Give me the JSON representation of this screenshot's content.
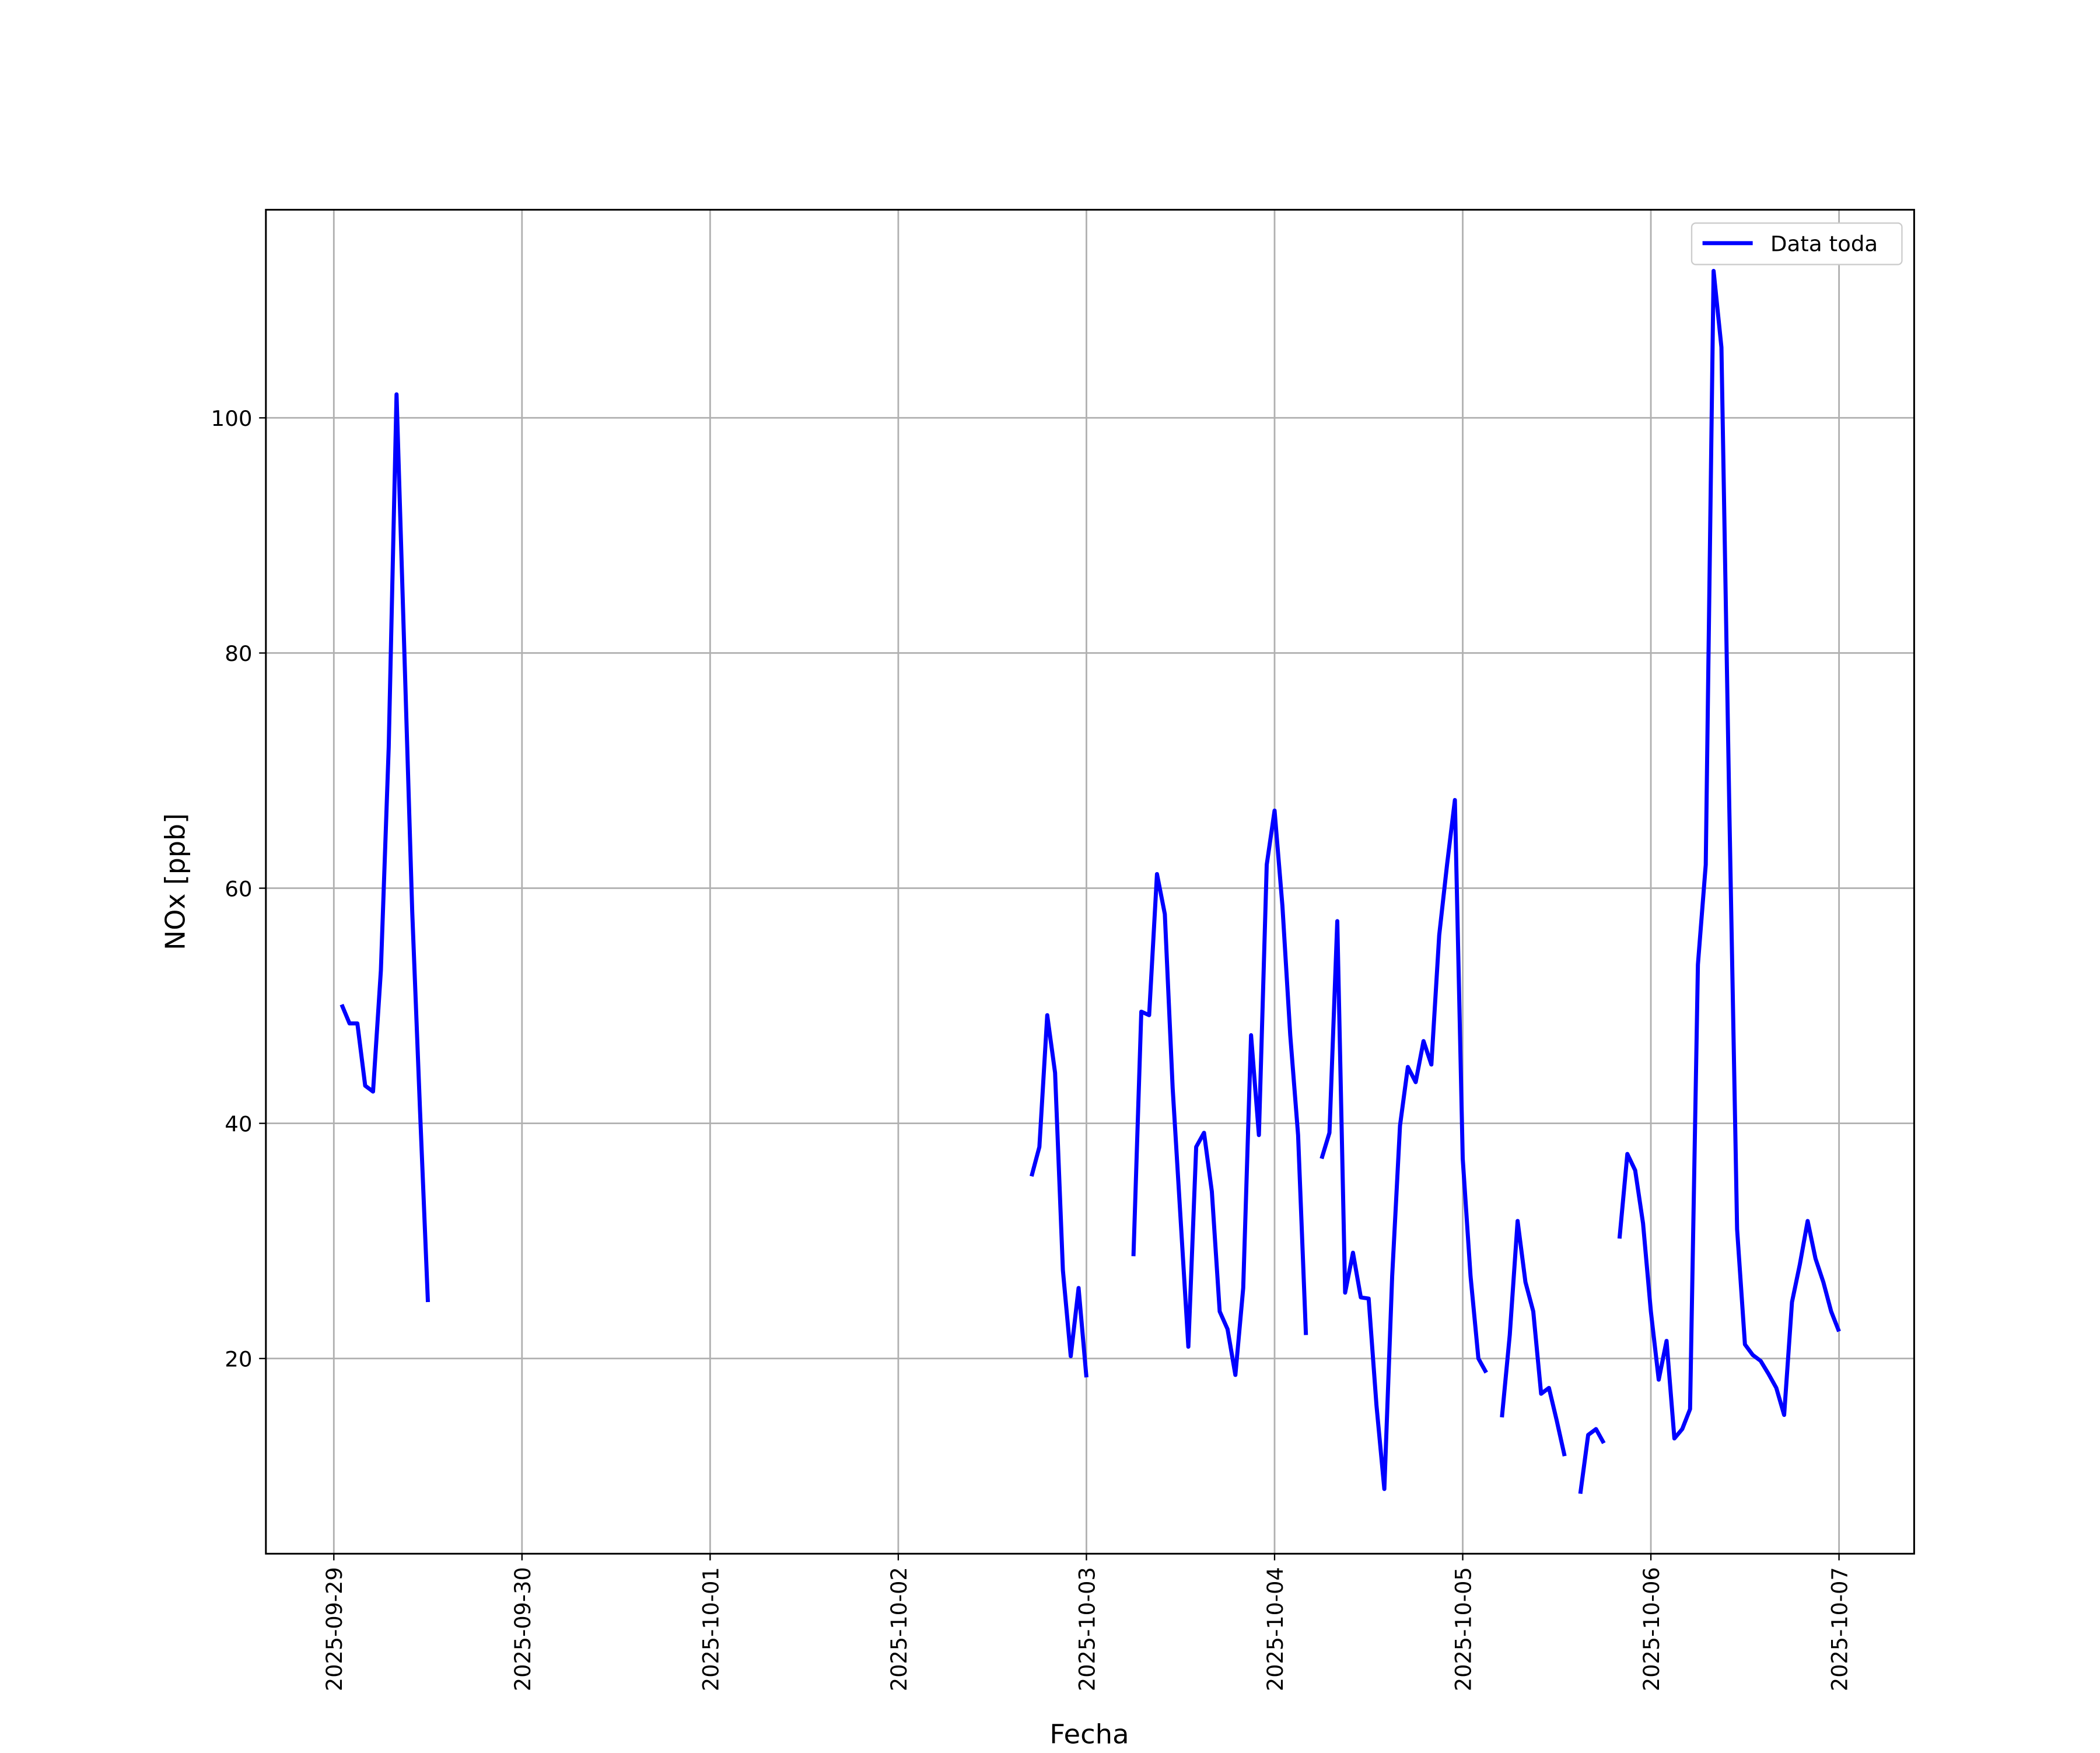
{
  "chart_data": {
    "type": "line",
    "xlabel": "Fecha",
    "ylabel": "NOx [ppb]",
    "x": [
      "2025-09-29T01:00",
      "2025-09-29T02:00",
      "2025-09-29T03:00",
      "2025-09-29T04:00",
      "2025-09-29T05:00",
      "2025-09-29T06:00",
      "2025-09-29T07:00",
      "2025-09-29T08:00",
      "2025-09-29T09:00",
      "2025-09-29T10:00",
      "2025-09-29T11:00",
      "2025-09-29T12:00",
      "2025-09-29T13:00",
      "2025-10-02T17:00",
      "2025-10-02T18:00",
      "2025-10-02T19:00",
      "2025-10-02T20:00",
      "2025-10-02T21:00",
      "2025-10-02T22:00",
      "2025-10-02T23:00",
      "2025-10-03T00:00",
      "2025-10-03T01:00",
      "2025-10-03T06:00",
      "2025-10-03T07:00",
      "2025-10-03T08:00",
      "2025-10-03T09:00",
      "2025-10-03T10:00",
      "2025-10-03T11:00",
      "2025-10-03T12:00",
      "2025-10-03T13:00",
      "2025-10-03T14:00",
      "2025-10-03T15:00",
      "2025-10-03T16:00",
      "2025-10-03T17:00",
      "2025-10-03T18:00",
      "2025-10-03T19:00",
      "2025-10-03T20:00",
      "2025-10-03T21:00",
      "2025-10-03T22:00",
      "2025-10-03T23:00",
      "2025-10-04T00:00",
      "2025-10-04T01:00",
      "2025-10-04T02:00",
      "2025-10-04T03:00",
      "2025-10-04T04:00",
      "2025-10-04T05:00",
      "2025-10-04T06:00",
      "2025-10-04T07:00",
      "2025-10-04T08:00",
      "2025-10-04T09:00",
      "2025-10-04T10:00",
      "2025-10-04T11:00",
      "2025-10-04T12:00",
      "2025-10-04T13:00",
      "2025-10-04T14:00",
      "2025-10-04T15:00",
      "2025-10-04T16:00",
      "2025-10-04T17:00",
      "2025-10-04T18:00",
      "2025-10-04T19:00",
      "2025-10-04T20:00",
      "2025-10-04T21:00",
      "2025-10-04T22:00",
      "2025-10-04T23:00",
      "2025-10-05T00:00",
      "2025-10-05T01:00",
      "2025-10-05T02:00",
      "2025-10-05T03:00",
      "2025-10-05T04:00",
      "2025-10-05T05:00",
      "2025-10-05T06:00",
      "2025-10-05T07:00",
      "2025-10-05T08:00",
      "2025-10-05T09:00",
      "2025-10-05T10:00",
      "2025-10-05T11:00",
      "2025-10-05T12:00",
      "2025-10-05T13:00",
      "2025-10-05T14:00",
      "2025-10-05T15:00",
      "2025-10-05T16:00",
      "2025-10-05T17:00",
      "2025-10-05T18:00",
      "2025-10-05T19:00",
      "2025-10-05T20:00",
      "2025-10-05T21:00",
      "2025-10-05T22:00",
      "2025-10-05T23:00",
      "2025-10-06T00:00",
      "2025-10-06T01:00",
      "2025-10-06T02:00",
      "2025-10-06T03:00",
      "2025-10-06T04:00",
      "2025-10-06T05:00",
      "2025-10-06T06:00",
      "2025-10-06T07:00",
      "2025-10-06T08:00",
      "2025-10-06T09:00",
      "2025-10-06T10:00",
      "2025-10-06T11:00",
      "2025-10-06T12:00",
      "2025-10-06T13:00",
      "2025-10-06T14:00",
      "2025-10-06T15:00",
      "2025-10-06T16:00",
      "2025-10-06T17:00",
      "2025-10-06T18:00",
      "2025-10-06T19:00",
      "2025-10-06T20:00",
      "2025-10-06T21:00",
      "2025-10-06T22:00",
      "2025-10-06T23:00",
      "2025-10-07T00:00"
    ],
    "series": [
      {
        "name": "Data toda",
        "color": "#0000ff",
        "values": [
          50.1,
          48.5,
          48.5,
          43.2,
          42.7,
          53,
          72,
          102,
          80,
          58,
          41,
          24.8,
          null,
          35.5,
          38,
          49.2,
          44.3,
          27.5,
          20.2,
          26,
          18.4,
          null,
          28.7,
          49.5,
          49.2,
          61.2,
          57.8,
          43,
          32,
          21,
          38,
          39.2,
          34.2,
          24,
          22.5,
          18.6,
          26,
          47.5,
          39,
          62,
          66.6,
          58.5,
          47.5,
          39,
          22,
          null,
          37,
          39.2,
          57.2,
          25.6,
          29,
          25.2,
          25.1,
          16,
          8.9,
          27,
          39.8,
          44.8,
          43.5,
          47,
          45,
          56,
          62,
          67.5,
          37,
          27,
          20,
          18.8,
          null,
          15,
          22,
          31.7,
          26.5,
          24,
          17,
          17.5,
          14.7,
          11.7,
          null,
          8.5,
          13.5,
          14,
          12.8,
          null,
          30.2,
          37.4,
          36,
          31.5,
          24,
          18.2,
          21.5,
          13.2,
          14,
          15.7,
          53.5,
          62,
          112.5,
          106,
          67,
          31,
          21.2,
          20.3,
          19.8,
          18.7,
          17.5,
          15.2,
          24.8,
          28,
          31.7,
          28.5,
          26.5,
          24,
          22.3
        ]
      }
    ],
    "xlim": [
      "2025-09-28T15:20",
      "2025-10-07T09:35"
    ],
    "xticks": [
      "2025-09-29",
      "2025-09-30",
      "2025-10-01",
      "2025-10-02",
      "2025-10-03",
      "2025-10-04",
      "2025-10-05",
      "2025-10-06",
      "2025-10-07"
    ],
    "ylim": [
      3.4,
      117.7
    ],
    "yticks": [
      20,
      40,
      60,
      80,
      100
    ],
    "grid": true,
    "legend": "upper right"
  }
}
